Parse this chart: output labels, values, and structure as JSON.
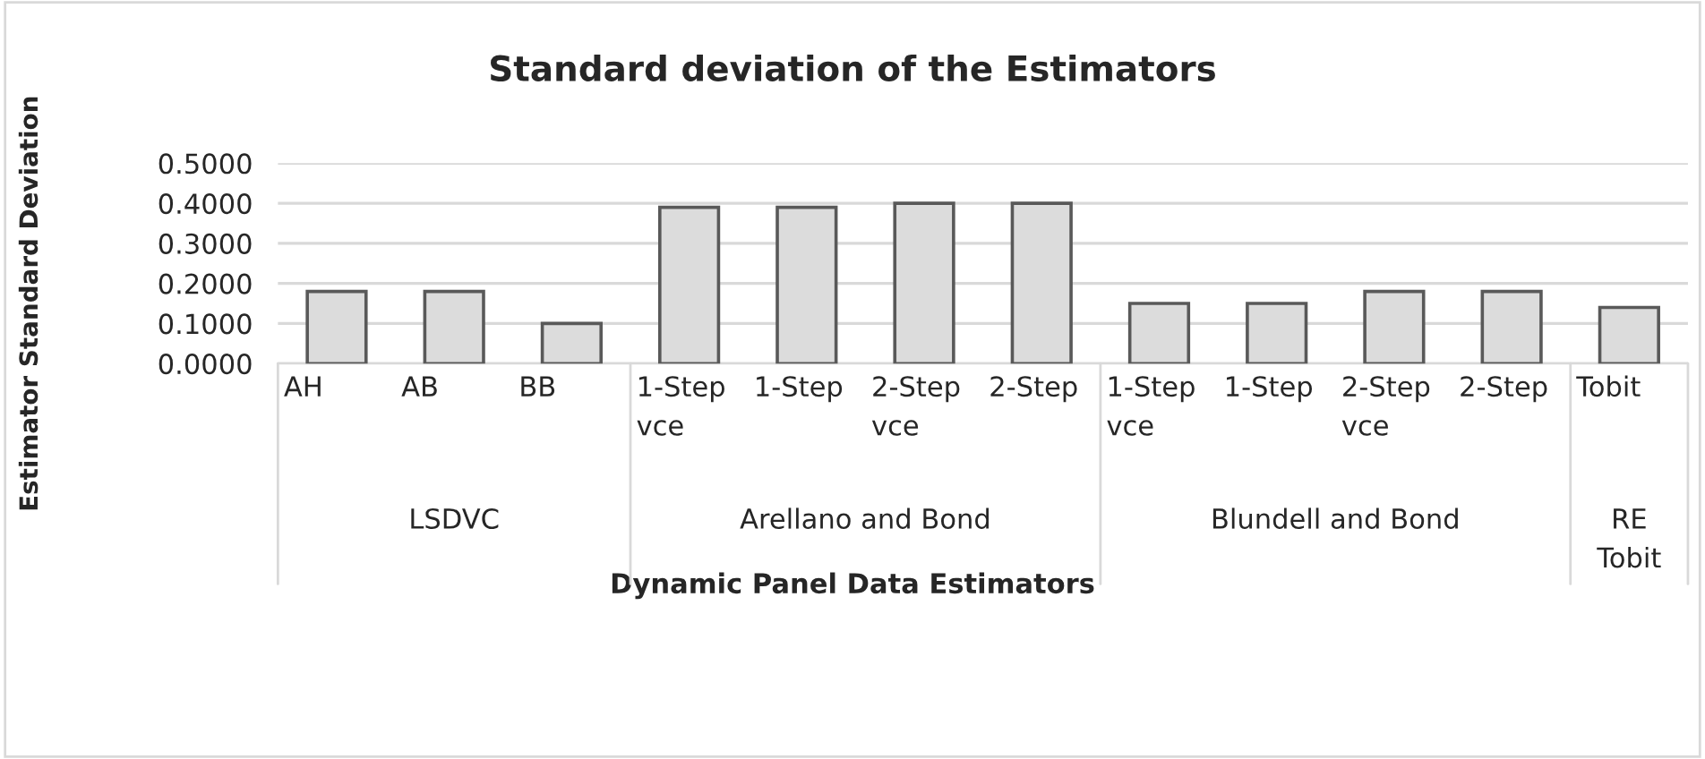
{
  "chart_data": {
    "type": "bar",
    "title": "Standard deviation of the Estimators",
    "xlabel": "Dynamic Panel Data Estimators",
    "ylabel": "Estimator Standard Deviation",
    "categories": [
      "AH",
      "AB",
      "BB",
      "1-Step vce",
      "1-Step",
      "2-Step vce",
      "2-Step",
      "1-Step vce",
      "1-Step",
      "2-Step vce",
      "2-Step",
      "Tobit"
    ],
    "values": [
      0.18,
      0.18,
      0.1,
      0.39,
      0.39,
      0.4,
      0.4,
      0.15,
      0.15,
      0.18,
      0.18,
      0.14
    ],
    "color": "#dcdcdc",
    "ylim": [
      0,
      0.5
    ],
    "yticks": [
      {
        "value": 0,
        "label": "0.0000"
      },
      {
        "value": 0.1,
        "label": "0.1000"
      },
      {
        "value": 0.2,
        "label": "0.2000"
      },
      {
        "value": 0.3,
        "label": "0.3000"
      },
      {
        "value": 0.4,
        "label": "0.4000"
      },
      {
        "value": 0.5,
        "label": "0.5000"
      }
    ],
    "grid": "y",
    "annotations": [
      "LSDVC",
      "Arellano and Bond",
      "Blundell and Bond",
      "RE\nTobit"
    ]
  }
}
